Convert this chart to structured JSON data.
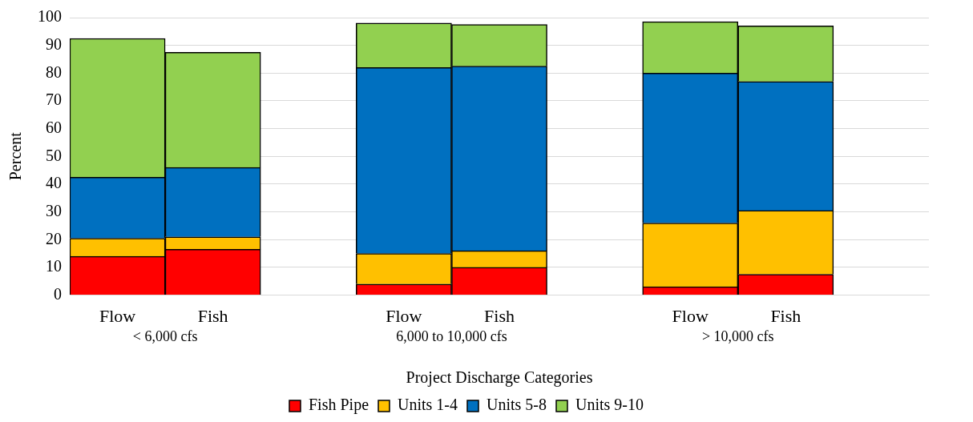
{
  "chart_data": {
    "type": "bar",
    "stacked": true,
    "xlabel": "Project Discharge Categories",
    "ylabel": "Percent",
    "categories": [
      "Flow",
      "Fish",
      null,
      "Flow",
      "Fish",
      null,
      "Flow",
      "Fish",
      null
    ],
    "series": [
      {
        "name": "Fish Pipe",
        "color": "#ff0000",
        "values": [
          14,
          16.5,
          null,
          4,
          10,
          null,
          3,
          7.5,
          null
        ]
      },
      {
        "name": "Units 1-4",
        "color": "#ffc000",
        "values": [
          6.5,
          4.5,
          null,
          11,
          6,
          null,
          23,
          23,
          null
        ]
      },
      {
        "name": "Units 5-8",
        "color": "#0070c0",
        "values": [
          22,
          25,
          null,
          67,
          66.5,
          null,
          54,
          46.5,
          null
        ]
      },
      {
        "name": "Units 9-10",
        "color": "#92d050",
        "values": [
          50,
          41.5,
          null,
          16,
          15,
          null,
          18.5,
          20,
          null
        ]
      }
    ],
    "annotations": [
      "< 6,000 cfs",
      "6,000 to 10,000 cfs",
      "> 10,000 cfs"
    ],
    "ylim": [
      0,
      100
    ],
    "yticks": [
      0,
      10,
      20,
      30,
      40,
      50,
      60,
      70,
      80,
      90,
      100
    ],
    "grid": "y",
    "legend": "bottom"
  }
}
